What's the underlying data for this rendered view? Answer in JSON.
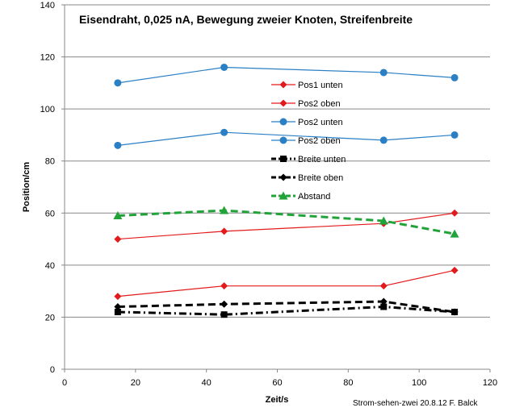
{
  "chart_data": {
    "type": "line",
    "title": "Eisendraht, 0,025 nA, Bewegung zweier Knoten, Streifenbreite",
    "xlabel": "Zeit/s",
    "ylabel": "Position/cm",
    "xlim": [
      0,
      120
    ],
    "ylim": [
      0,
      140
    ],
    "xticks": [
      0,
      20,
      40,
      60,
      80,
      100,
      120
    ],
    "yticks": [
      0,
      20,
      40,
      60,
      80,
      100,
      120,
      140
    ],
    "grid": "horizontal",
    "legend_position": "center",
    "credit": "Strom-sehen-zwei 20.8.12 F. Balck",
    "series": [
      {
        "name": "Pos1 unten",
        "color": "#e31a1c",
        "marker": "diamond",
        "line": "solid",
        "x": [
          15,
          45,
          90,
          110
        ],
        "y": [
          50,
          53,
          56,
          60
        ]
      },
      {
        "name": "Pos2 oben",
        "color": "#e31a1c",
        "marker": "diamond",
        "line": "solid",
        "x": [
          15,
          45,
          90,
          110
        ],
        "y": [
          28,
          32,
          32,
          38
        ]
      },
      {
        "name": "Pos2 unten",
        "color": "#2a7fc5",
        "marker": "circle",
        "line": "solid",
        "x": [
          15,
          45,
          90,
          110
        ],
        "y": [
          110,
          116,
          114,
          112
        ]
      },
      {
        "name": "Pos2 oben",
        "color": "#2a7fc5",
        "marker": "circle",
        "line": "solid",
        "x": [
          15,
          45,
          90,
          110
        ],
        "y": [
          86,
          91,
          88,
          90
        ]
      },
      {
        "name": "Breite unten",
        "color": "#000000",
        "marker": "square",
        "line": "dashdot",
        "x": [
          15,
          45,
          90,
          110
        ],
        "y": [
          22,
          21,
          24,
          22
        ]
      },
      {
        "name": "Breite oben",
        "color": "#000000",
        "marker": "diamond",
        "line": "dashed",
        "x": [
          15,
          45,
          90,
          110
        ],
        "y": [
          24,
          25,
          26,
          22
        ]
      },
      {
        "name": "Abstand",
        "color": "#22a33a",
        "marker": "triangle",
        "line": "dashed",
        "x": [
          15,
          45,
          90,
          110
        ],
        "y": [
          59,
          61,
          57,
          52
        ]
      }
    ]
  }
}
